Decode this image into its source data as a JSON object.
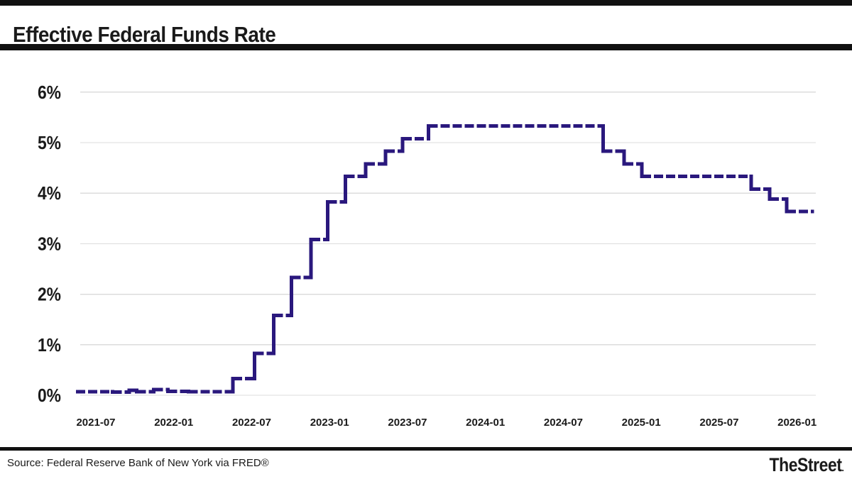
{
  "header": {
    "title": "Effective Federal Funds Rate"
  },
  "footer": {
    "source": "Source: Federal Reserve Bank of New York via FRED®",
    "brand": "TheStreet",
    "brand_suffix": "."
  },
  "colors": {
    "line": "#2a187d",
    "grid": "#dcdcdc",
    "bars": "#111111",
    "text": "#1a1a1a"
  },
  "chart_data": {
    "type": "line",
    "subtype": "step-after",
    "line_style": "dashed",
    "title": "Effective Federal Funds Rate",
    "xlabel": "",
    "ylabel": "",
    "grid": "horizontal-only",
    "legend": "none",
    "ylim": [
      0,
      6
    ],
    "y_tick_labels": [
      "0%",
      "1%",
      "2%",
      "3%",
      "4%",
      "5%",
      "6%"
    ],
    "y_tick_values": [
      0,
      1,
      2,
      3,
      4,
      5,
      6
    ],
    "x_tick_labels": [
      "2021-07",
      "2022-01",
      "2022-07",
      "2023-01",
      "2023-07",
      "2024-01",
      "2024-07",
      "2025-01",
      "2025-07",
      "2026-01"
    ],
    "x_range": [
      "2021-05-15",
      "2026-02-10"
    ],
    "series": [
      {
        "name": "Effective Federal Funds Rate (%)",
        "points": [
          [
            "2021-05-15",
            0.07
          ],
          [
            "2021-08-10",
            0.06
          ],
          [
            "2021-09-18",
            0.1
          ],
          [
            "2021-10-05",
            0.07
          ],
          [
            "2021-11-15",
            0.11
          ],
          [
            "2021-12-18",
            0.08
          ],
          [
            "2022-02-05",
            0.07
          ],
          [
            "2022-05-18",
            0.33
          ],
          [
            "2022-07-08",
            0.83
          ],
          [
            "2022-08-22",
            1.58
          ],
          [
            "2022-10-03",
            2.33
          ],
          [
            "2022-11-18",
            3.08
          ],
          [
            "2022-12-27",
            3.83
          ],
          [
            "2023-02-08",
            4.33
          ],
          [
            "2023-03-25",
            4.58
          ],
          [
            "2023-05-10",
            4.83
          ],
          [
            "2023-06-20",
            5.08
          ],
          [
            "2023-08-20",
            5.33
          ],
          [
            "2024-10-03",
            4.83
          ],
          [
            "2024-11-22",
            4.58
          ],
          [
            "2025-01-02",
            4.33
          ],
          [
            "2025-09-15",
            4.08
          ],
          [
            "2025-10-28",
            3.88
          ],
          [
            "2025-12-07",
            3.64
          ],
          [
            "2026-02-10",
            3.64
          ]
        ]
      }
    ]
  }
}
